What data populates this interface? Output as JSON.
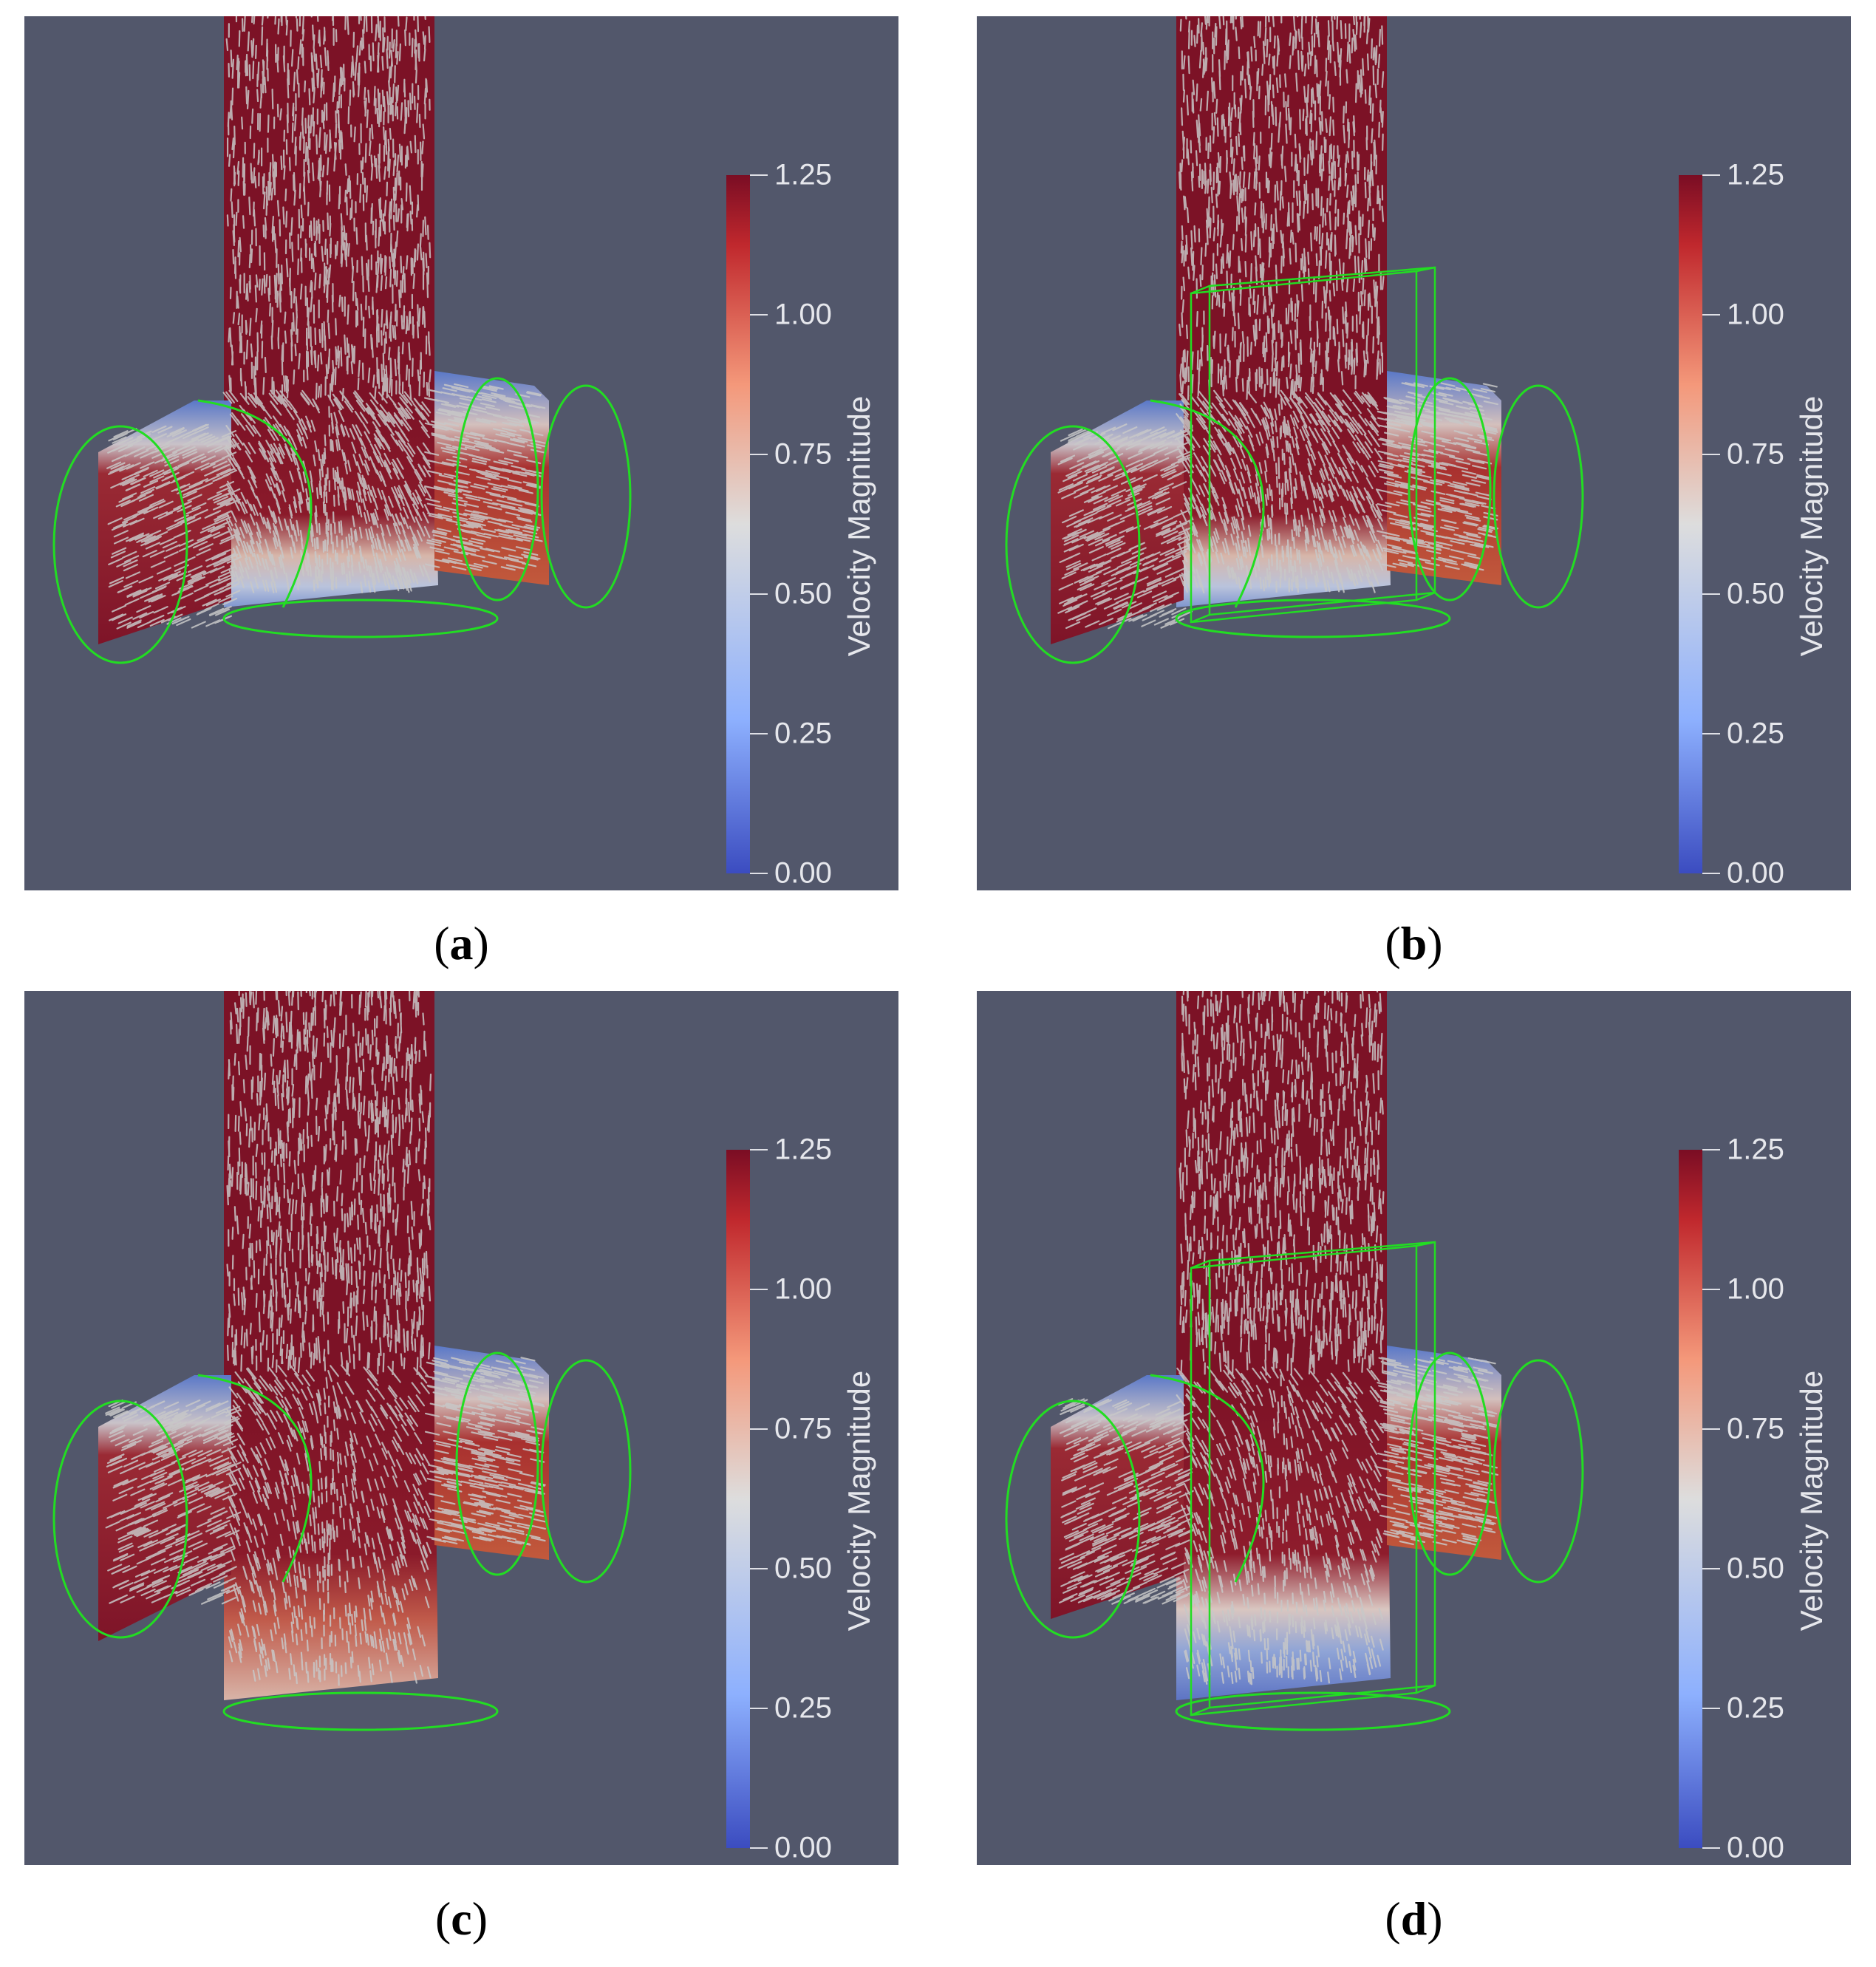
{
  "colorbar": {
    "title": "Velocity Magnitude",
    "ticks": [
      "1.25",
      "1.00",
      "0.75",
      "0.50",
      "0.25",
      "0.00"
    ],
    "tick_values": [
      1.25,
      1.0,
      0.75,
      0.5,
      0.25,
      0.0
    ],
    "colors": {
      "high": "#7a0d24",
      "mid": "#dddddd",
      "low": "#3b4cc0"
    }
  },
  "panels": [
    {
      "label": "a",
      "caption_open": "(",
      "caption_close": ")",
      "has_box": false,
      "variant": "a"
    },
    {
      "label": "b",
      "caption_open": "(",
      "caption_close": ")",
      "has_box": true,
      "variant": "b"
    },
    {
      "label": "c",
      "caption_open": "(",
      "caption_close": ")",
      "has_box": false,
      "variant": "c"
    },
    {
      "label": "d",
      "caption_open": "(",
      "caption_close": ")",
      "has_box": true,
      "variant": "d"
    }
  ],
  "colors": {
    "background": "#52576b",
    "outline": "#22dd22",
    "arrows": "#c8c8c8"
  }
}
